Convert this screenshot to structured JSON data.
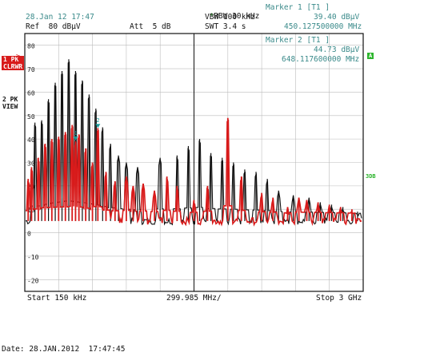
{
  "header": {
    "datetime": "28.Jan 12 17:47",
    "ref": "Ref  80 dBµV",
    "att": "Att  5 dB",
    "rbw": "RBW 30 kHz",
    "vbw": "VBW 100 kHz",
    "swt": "SWT 3.4 s"
  },
  "markers": {
    "m1_title": "Marker 1 [T1 ]",
    "m1_level": "39.40 dBµV",
    "m1_freq": "450.127500000 MHz",
    "m2_title": "Marker 2 [T1 ]",
    "m2_level": "44.73 dBµV",
    "m2_freq": "648.117600000 MHz"
  },
  "sidebar": {
    "trace1_line1": "1 PK",
    "trace1_line2": "CLRWR",
    "trace2_line1": "2 PK",
    "trace2_line2": "VIEW",
    "a_label": "A",
    "db3_label": "3DB"
  },
  "footer": {
    "start": "Start 150 kHz",
    "span": "299.985 MHz/",
    "stop": "Stop 3 GHz",
    "date": "Date: 28.JAN.2012  17:47:45"
  },
  "chart_data": {
    "type": "line",
    "ylim": [
      -25,
      85
    ],
    "xlim_mhz": [
      0.15,
      3000
    ],
    "yticks": [
      "80",
      "70",
      "60",
      "50",
      "40",
      "30",
      "20",
      "10",
      "0",
      "-10",
      "-20"
    ],
    "colors": {
      "trace1": "#d81b1b",
      "trace2": "#111111",
      "marker": "#1a9a9a",
      "grid": "#bcbcbc"
    },
    "noise_floor_db": 5,
    "series": [
      {
        "trace": "1 PK CLRWR",
        "color": "#d81b1b",
        "peaks": [
          [
            30,
            23
          ],
          [
            60,
            28
          ],
          [
            120,
            32
          ],
          [
            180,
            38
          ],
          [
            240,
            40
          ],
          [
            300,
            41
          ],
          [
            360,
            43
          ],
          [
            420,
            46
          ],
          [
            450,
            39
          ],
          [
            480,
            42
          ],
          [
            540,
            36
          ],
          [
            600,
            30
          ],
          [
            648,
            44.7
          ],
          [
            720,
            26
          ],
          [
            800,
            22
          ],
          [
            900,
            24
          ],
          [
            960,
            20
          ],
          [
            1050,
            21
          ],
          [
            1150,
            18
          ],
          [
            1260,
            24
          ],
          [
            1350,
            20
          ],
          [
            1500,
            14
          ],
          [
            1620,
            20
          ],
          [
            1800,
            49
          ],
          [
            1920,
            24
          ],
          [
            2100,
            17
          ],
          [
            2200,
            15
          ],
          [
            2330,
            11
          ],
          [
            2430,
            15
          ],
          [
            2500,
            14
          ],
          [
            2600,
            13
          ],
          [
            2700,
            12
          ],
          [
            2800,
            11
          ],
          [
            2900,
            10
          ]
        ]
      },
      {
        "trace": "2 PK VIEW",
        "color": "#111111",
        "peaks": [
          [
            90,
            47
          ],
          [
            150,
            48
          ],
          [
            210,
            57
          ],
          [
            270,
            64
          ],
          [
            330,
            69
          ],
          [
            390,
            74
          ],
          [
            450,
            69
          ],
          [
            510,
            65
          ],
          [
            570,
            59
          ],
          [
            630,
            53
          ],
          [
            690,
            45
          ],
          [
            760,
            38
          ],
          [
            830,
            33
          ],
          [
            900,
            30
          ],
          [
            1000,
            28
          ],
          [
            1200,
            32
          ],
          [
            1350,
            33
          ],
          [
            1450,
            37
          ],
          [
            1550,
            40
          ],
          [
            1650,
            34
          ],
          [
            1750,
            32
          ],
          [
            1850,
            30
          ],
          [
            1950,
            27
          ],
          [
            2050,
            26
          ],
          [
            2150,
            23
          ],
          [
            2250,
            18
          ],
          [
            2380,
            16
          ],
          [
            2520,
            15
          ],
          [
            2620,
            13
          ],
          [
            2720,
            12
          ],
          [
            2820,
            11
          ],
          [
            2950,
            9
          ]
        ]
      }
    ],
    "marker_points": [
      {
        "name": "1",
        "freq_mhz": 450.1275,
        "level_db": 39.4
      },
      {
        "name": "2",
        "freq_mhz": 648.1176,
        "level_db": 44.73
      }
    ]
  }
}
